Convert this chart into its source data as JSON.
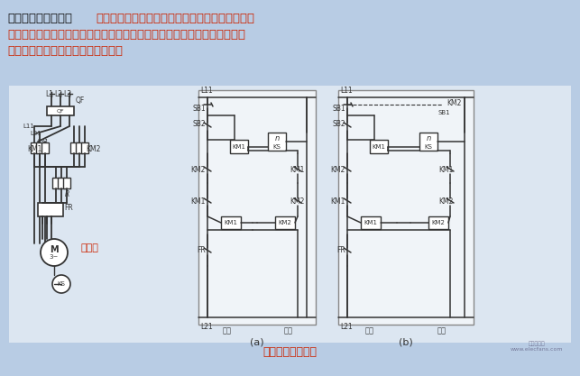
{
  "bg_color": "#b8cce4",
  "diagram_bg": "#e8eef5",
  "title_bold": "反接制动控制电路：",
  "title_bold_color": "#1a1a1a",
  "title_text": "停车时，首先切换电动机定子绕组三相电源相序，",
  "line2": "产生与转子转动方向相反的转矩，因而起制动作用。电动机的转速下降接近",
  "line3": "零时，及时断开电动机的反接电源。",
  "title_color": "#cc2200",
  "bottom_label": "反接制动控制电路",
  "label_a": "(a)",
  "label_b": "(b)",
  "watermark": "电子发烧友\nwww.elecfans.com"
}
